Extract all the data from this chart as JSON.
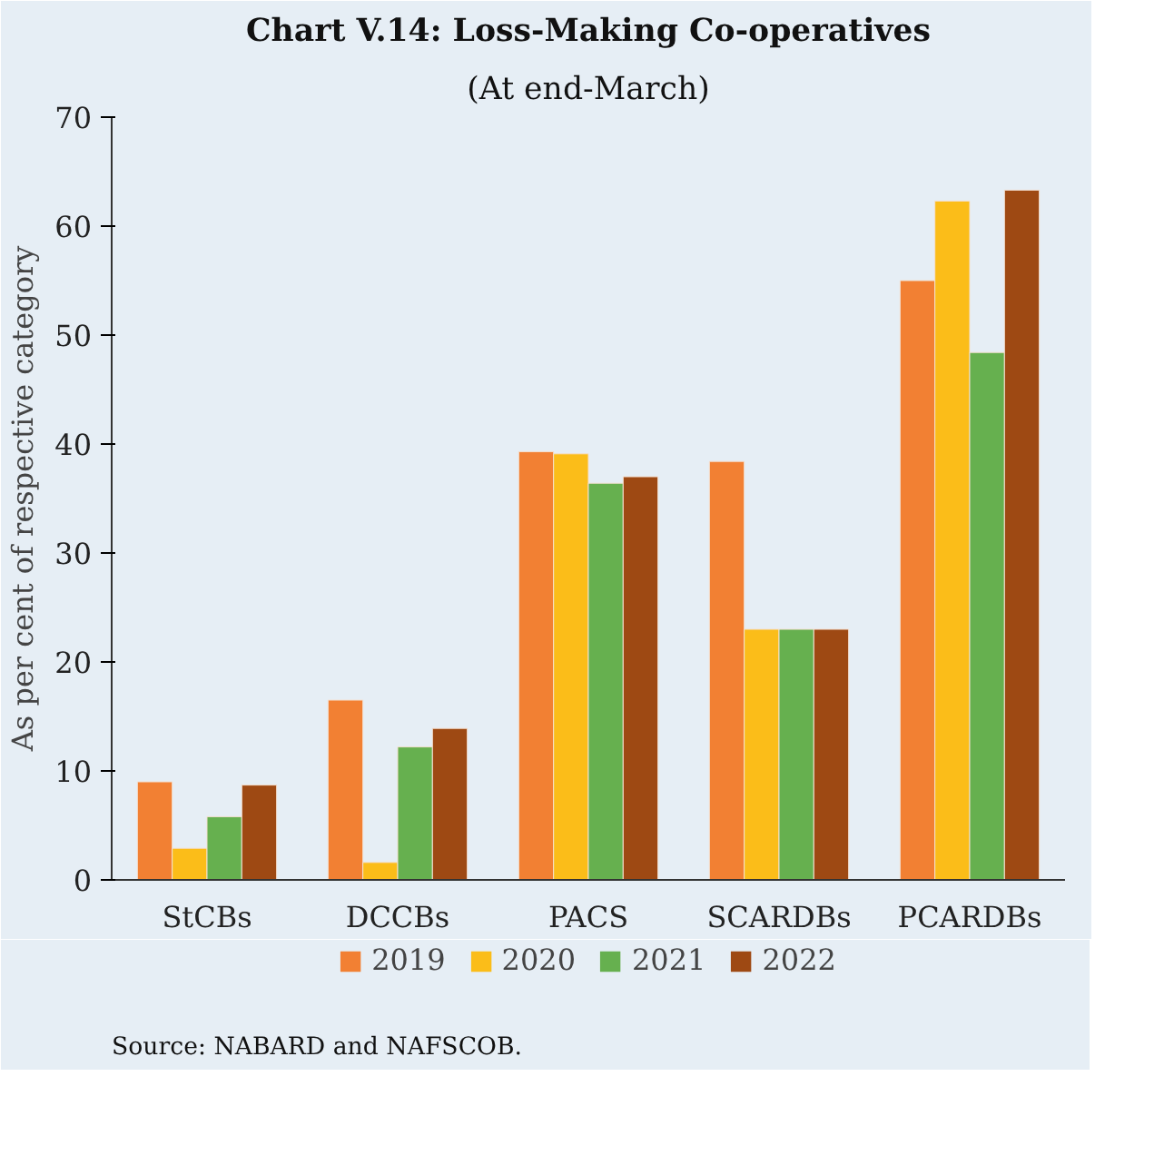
{
  "chart_data": {
    "type": "bar",
    "title": "Chart V.14: Loss-Making Co-operatives",
    "subtitle": "(At end-March)",
    "ylabel": "As per cent of respective category",
    "categories": [
      "StCBs",
      "DCCBs",
      "PACS",
      "SCARDBs",
      "PCARDBs"
    ],
    "series": [
      {
        "name": "2019",
        "color": "#f28033",
        "values": [
          9.0,
          16.5,
          39.3,
          38.4,
          55.0
        ]
      },
      {
        "name": "2020",
        "color": "#fbbd19",
        "values": [
          2.9,
          1.6,
          39.1,
          23.0,
          62.3
        ]
      },
      {
        "name": "2021",
        "color": "#66b04f",
        "values": [
          5.8,
          12.2,
          36.4,
          23.0,
          48.4
        ]
      },
      {
        "name": "2022",
        "color": "#9e4913",
        "values": [
          8.7,
          13.9,
          37.0,
          23.0,
          63.3
        ]
      }
    ],
    "ylim": [
      0,
      70
    ],
    "yticks": [
      0,
      10,
      20,
      30,
      40,
      50,
      60,
      70
    ],
    "grid": false,
    "legend": "bottom",
    "annotations": [
      "Source: NABARD and NAFSCOB."
    ]
  }
}
